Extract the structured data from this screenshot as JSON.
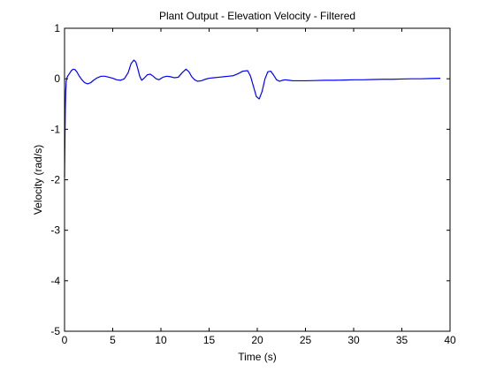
{
  "chart_data": {
    "type": "line",
    "title": "Plant Output - Elevation Velocity - Filtered",
    "xlabel": "Time (s)",
    "ylabel": "Velocity (rad/s)",
    "xlim": [
      0,
      40
    ],
    "ylim": [
      -5,
      1
    ],
    "xticks": [
      0,
      5,
      10,
      15,
      20,
      25,
      30,
      35,
      40
    ],
    "yticks": [
      1,
      0,
      -1,
      -2,
      -3,
      -4,
      -5
    ],
    "grid": false,
    "series": [
      {
        "color": "#0000ff",
        "x": [
          0.0,
          0.04,
          0.08,
          0.12,
          0.18,
          0.25,
          0.35,
          0.5,
          0.7,
          0.9,
          1.1,
          1.3,
          1.5,
          1.8,
          2.1,
          2.4,
          2.7,
          3.0,
          3.4,
          3.8,
          4.2,
          4.6,
          5.0,
          5.4,
          5.8,
          6.2,
          6.6,
          6.9,
          7.2,
          7.4,
          7.6,
          7.8,
          8.0,
          8.3,
          8.6,
          8.9,
          9.2,
          9.5,
          9.8,
          10.2,
          10.6,
          11.0,
          11.4,
          11.8,
          12.2,
          12.6,
          12.9,
          13.2,
          13.5,
          13.8,
          14.2,
          14.6,
          15.0,
          15.5,
          16.0,
          16.5,
          17.0,
          17.5,
          18.0,
          18.5,
          19.0,
          19.3,
          19.6,
          19.9,
          20.2,
          20.5,
          20.8,
          21.1,
          21.4,
          21.7,
          22.0,
          22.3,
          22.6,
          22.9,
          23.3,
          23.7,
          24.2,
          25.0,
          26.0,
          27.0,
          28.0,
          29.0,
          30.0,
          31.0,
          32.0,
          33.0,
          34.0,
          35.0,
          36.0,
          37.0,
          38.0,
          39.0
        ],
        "y": [
          -1.95,
          -1.2,
          -0.6,
          -0.25,
          -0.05,
          0.02,
          0.06,
          0.1,
          0.16,
          0.19,
          0.18,
          0.13,
          0.06,
          -0.02,
          -0.08,
          -0.1,
          -0.08,
          -0.03,
          0.02,
          0.05,
          0.05,
          0.03,
          0.01,
          -0.02,
          -0.03,
          0.0,
          0.12,
          0.3,
          0.37,
          0.33,
          0.2,
          0.05,
          -0.03,
          0.02,
          0.08,
          0.09,
          0.05,
          0.0,
          -0.02,
          0.03,
          0.05,
          0.04,
          0.02,
          0.03,
          0.12,
          0.19,
          0.14,
          0.04,
          -0.02,
          -0.05,
          -0.04,
          -0.01,
          0.01,
          0.02,
          0.03,
          0.04,
          0.05,
          0.06,
          0.1,
          0.15,
          0.16,
          0.05,
          -0.15,
          -0.35,
          -0.4,
          -0.25,
          0.0,
          0.14,
          0.15,
          0.07,
          -0.02,
          -0.05,
          -0.03,
          -0.02,
          -0.03,
          -0.04,
          -0.04,
          -0.04,
          -0.035,
          -0.03,
          -0.03,
          -0.025,
          -0.02,
          -0.02,
          -0.015,
          -0.01,
          -0.01,
          -0.005,
          0.0,
          0.0,
          0.005,
          0.01
        ]
      }
    ]
  }
}
